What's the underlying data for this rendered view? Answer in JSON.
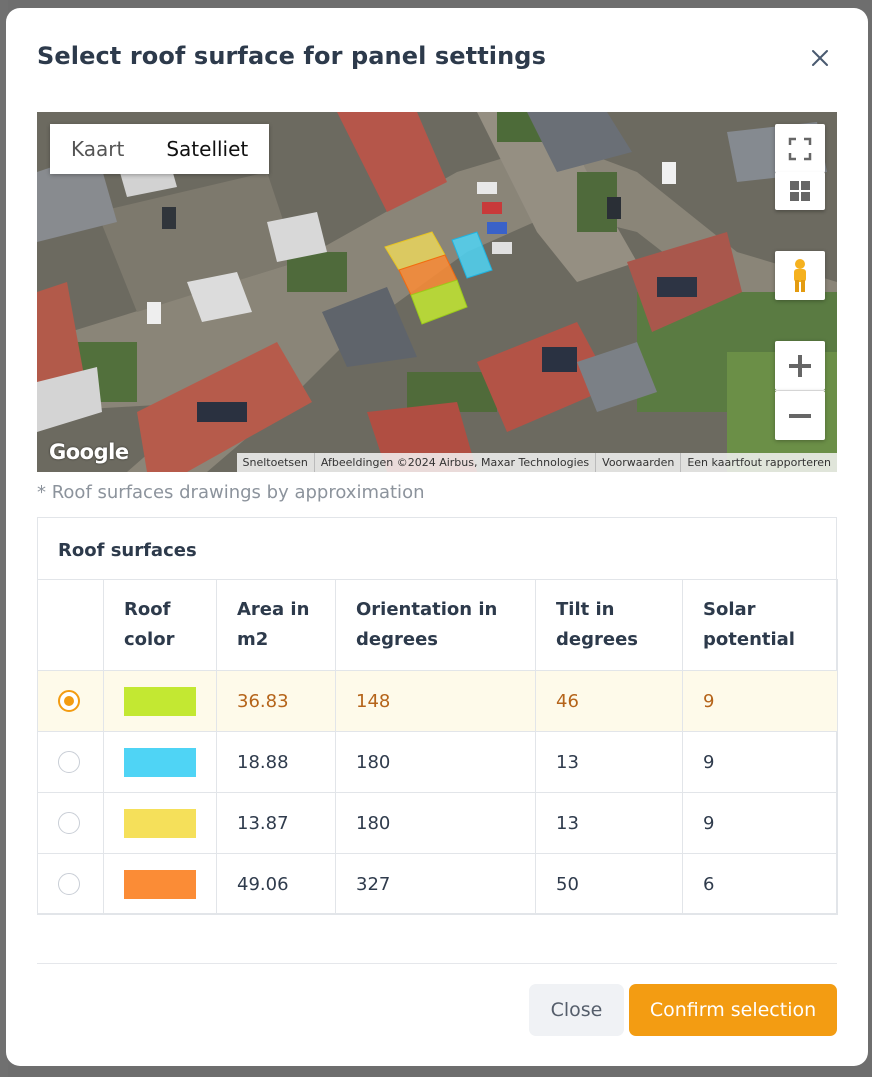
{
  "modal": {
    "title": "Select roof surface for panel settings",
    "close_icon": "close-icon"
  },
  "map": {
    "type_options": [
      "Kaart",
      "Satelliet"
    ],
    "active_type": "Satelliet",
    "logo": "Google",
    "attribution": [
      "Sneltoetsen",
      "Afbeeldingen ©2024 Airbus, Maxar Technologies",
      "Voorwaarden",
      "Een kaartfout rapporteren"
    ],
    "controls": [
      "fullscreen-icon",
      "tiles-icon",
      "pegman-icon",
      "zoom-in-icon",
      "zoom-out-icon"
    ],
    "note": "* Roof surfaces drawings by approximation"
  },
  "roof_surfaces": {
    "title": "Roof surfaces",
    "columns": [
      "",
      "Roof color",
      "Area in m2",
      "Orientation in degrees",
      "Tilt in degrees",
      "Solar potential"
    ],
    "rows": [
      {
        "selected": true,
        "color": "#c3e832",
        "area": "36.83",
        "orientation": "148",
        "tilt": "46",
        "potential": "9"
      },
      {
        "selected": false,
        "color": "#4fd4f5",
        "area": "18.88",
        "orientation": "180",
        "tilt": "13",
        "potential": "9"
      },
      {
        "selected": false,
        "color": "#f5e05a",
        "area": "13.87",
        "orientation": "180",
        "tilt": "13",
        "potential": "9"
      },
      {
        "selected": false,
        "color": "#fb8c36",
        "area": "49.06",
        "orientation": "327",
        "tilt": "50",
        "potential": "6"
      }
    ]
  },
  "footer": {
    "close_label": "Close",
    "confirm_label": "Confirm selection"
  },
  "colors": {
    "accent": "#f39c12",
    "selected_row_bg": "#fefaea",
    "selected_row_text": "#b5641a"
  }
}
